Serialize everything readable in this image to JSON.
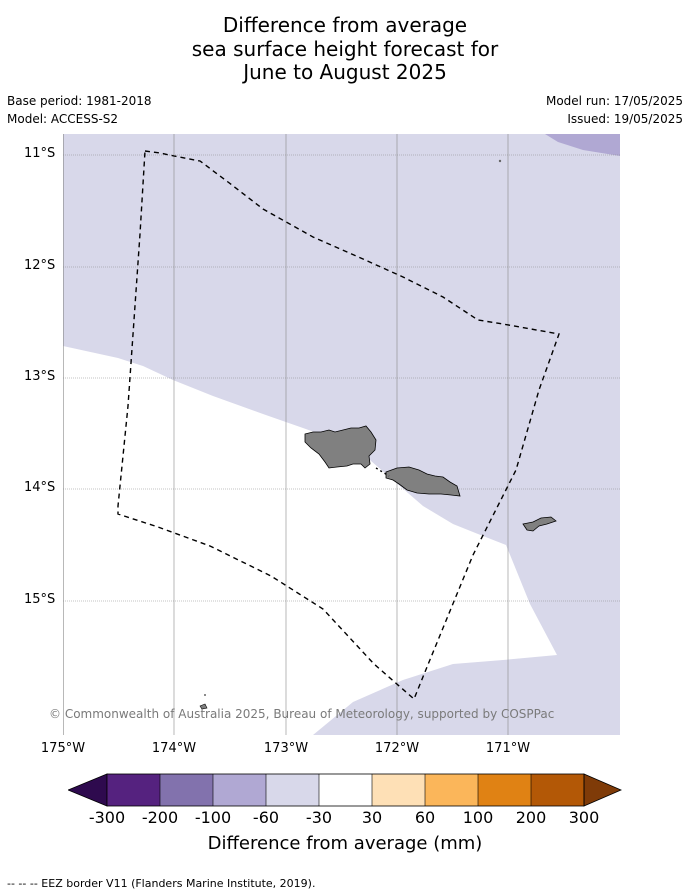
{
  "title": {
    "line1": "Difference from average",
    "line2": "sea surface height forecast for",
    "line3": "June to August 2025"
  },
  "meta": {
    "base_period": "Base period: 1981-2018",
    "model": "Model: ACCESS-S2",
    "model_run": "Model run: 17/05/2025",
    "issued": "Issued: 19/05/2025"
  },
  "map": {
    "lat_labels": [
      "11°S",
      "12°S",
      "13°S",
      "14°S",
      "15°S"
    ],
    "lon_labels": [
      "175°W",
      "174°W",
      "173°W",
      "172°W",
      "171°W"
    ],
    "copyright": "© Commonwealth of Australia 2025, Bureau of Meteorology, supported by COSPPac",
    "colors": {
      "light_purple": "#d8d8ea",
      "medium_purple": "#b0a8d3",
      "land": "#808080",
      "ocean_neutral": "#ffffff"
    }
  },
  "colorbar": {
    "ticks": [
      "-300",
      "-200",
      "-100",
      "-60",
      "-30",
      "30",
      "60",
      "100",
      "200",
      "300"
    ],
    "label": "Difference from average (mm)",
    "colors": [
      "#2e0a4e",
      "#55227f",
      "#8272ad",
      "#b0a8d3",
      "#d8d8ea",
      "#ffffff",
      "#fee0b6",
      "#fbb65a",
      "#e08214",
      "#b35806",
      "#7f3b08"
    ]
  },
  "legend_note": "--  --  -- EEZ border V11 (Flanders Marine Institute, 2019)."
}
